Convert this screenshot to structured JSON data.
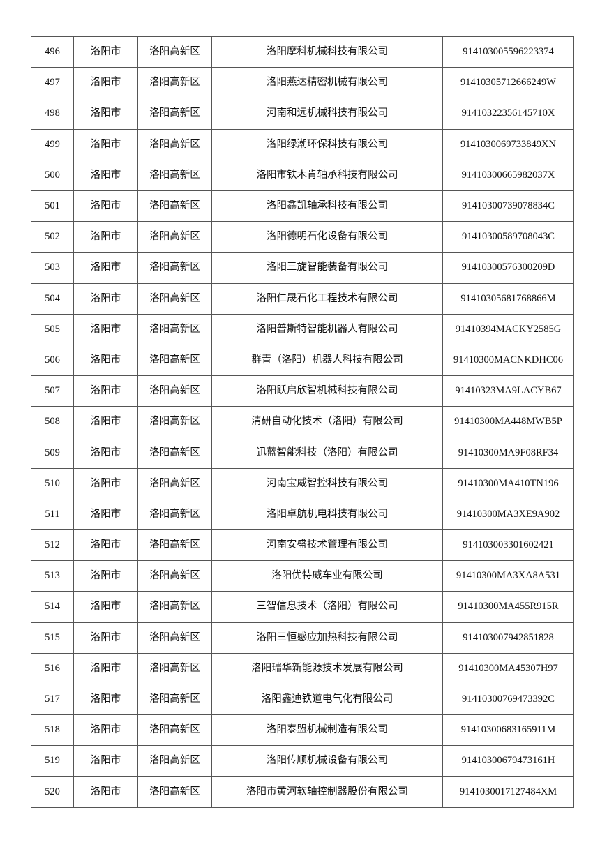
{
  "table": {
    "rows": [
      {
        "no": "496",
        "city": "洛阳市",
        "district": "洛阳高新区",
        "company": "洛阳摩科机械科技有限公司",
        "code": "914103005596223374"
      },
      {
        "no": "497",
        "city": "洛阳市",
        "district": "洛阳高新区",
        "company": "洛阳燕达精密机械有限公司",
        "code": "91410305712666249W"
      },
      {
        "no": "498",
        "city": "洛阳市",
        "district": "洛阳高新区",
        "company": "河南和远机械科技有限公司",
        "code": "91410322356145710X"
      },
      {
        "no": "499",
        "city": "洛阳市",
        "district": "洛阳高新区",
        "company": "洛阳绿潮环保科技有限公司",
        "code": "9141030069733849XN"
      },
      {
        "no": "500",
        "city": "洛阳市",
        "district": "洛阳高新区",
        "company": "洛阳市铁木肯轴承科技有限公司",
        "code": "91410300665982037X"
      },
      {
        "no": "501",
        "city": "洛阳市",
        "district": "洛阳高新区",
        "company": "洛阳鑫凯轴承科技有限公司",
        "code": "91410300739078834C"
      },
      {
        "no": "502",
        "city": "洛阳市",
        "district": "洛阳高新区",
        "company": "洛阳德明石化设备有限公司",
        "code": "91410300589708043C"
      },
      {
        "no": "503",
        "city": "洛阳市",
        "district": "洛阳高新区",
        "company": "洛阳三旋智能装备有限公司",
        "code": "91410300576300209D"
      },
      {
        "no": "504",
        "city": "洛阳市",
        "district": "洛阳高新区",
        "company": "洛阳仁晟石化工程技术有限公司",
        "code": "91410305681768866M"
      },
      {
        "no": "505",
        "city": "洛阳市",
        "district": "洛阳高新区",
        "company": "洛阳普斯特智能机器人有限公司",
        "code": "91410394MACKY2585G"
      },
      {
        "no": "506",
        "city": "洛阳市",
        "district": "洛阳高新区",
        "company": "群青（洛阳）机器人科技有限公司",
        "code": "91410300MACNKDHC06"
      },
      {
        "no": "507",
        "city": "洛阳市",
        "district": "洛阳高新区",
        "company": "洛阳跃启欣智机械科技有限公司",
        "code": "91410323MA9LACYB67"
      },
      {
        "no": "508",
        "city": "洛阳市",
        "district": "洛阳高新区",
        "company": "清研自动化技术（洛阳）有限公司",
        "code": "91410300MA448MWB5P"
      },
      {
        "no": "509",
        "city": "洛阳市",
        "district": "洛阳高新区",
        "company": "迅蓝智能科技（洛阳）有限公司",
        "code": "91410300MA9F08RF34"
      },
      {
        "no": "510",
        "city": "洛阳市",
        "district": "洛阳高新区",
        "company": "河南宝威智控科技有限公司",
        "code": "91410300MA410TN196"
      },
      {
        "no": "511",
        "city": "洛阳市",
        "district": "洛阳高新区",
        "company": "洛阳卓航机电科技有限公司",
        "code": "91410300MA3XE9A902"
      },
      {
        "no": "512",
        "city": "洛阳市",
        "district": "洛阳高新区",
        "company": "河南安盛技术管理有限公司",
        "code": "914103003301602421"
      },
      {
        "no": "513",
        "city": "洛阳市",
        "district": "洛阳高新区",
        "company": "洛阳优特威车业有限公司",
        "code": "91410300MA3XA8A531"
      },
      {
        "no": "514",
        "city": "洛阳市",
        "district": "洛阳高新区",
        "company": "三智信息技术（洛阳）有限公司",
        "code": "91410300MA455R915R"
      },
      {
        "no": "515",
        "city": "洛阳市",
        "district": "洛阳高新区",
        "company": "洛阳三恒感应加热科技有限公司",
        "code": "914103007942851828"
      },
      {
        "no": "516",
        "city": "洛阳市",
        "district": "洛阳高新区",
        "company": "洛阳瑞华新能源技术发展有限公司",
        "code": "91410300MA45307H97"
      },
      {
        "no": "517",
        "city": "洛阳市",
        "district": "洛阳高新区",
        "company": "洛阳鑫迪铁道电气化有限公司",
        "code": "91410300769473392C"
      },
      {
        "no": "518",
        "city": "洛阳市",
        "district": "洛阳高新区",
        "company": "洛阳泰盟机械制造有限公司",
        "code": "91410300683165911M"
      },
      {
        "no": "519",
        "city": "洛阳市",
        "district": "洛阳高新区",
        "company": "洛阳传顺机械设备有限公司",
        "code": "91410300679473161H"
      },
      {
        "no": "520",
        "city": "洛阳市",
        "district": "洛阳高新区",
        "company": "洛阳市黄河软轴控制器股份有限公司",
        "code": "9141030017127484XM"
      }
    ]
  }
}
